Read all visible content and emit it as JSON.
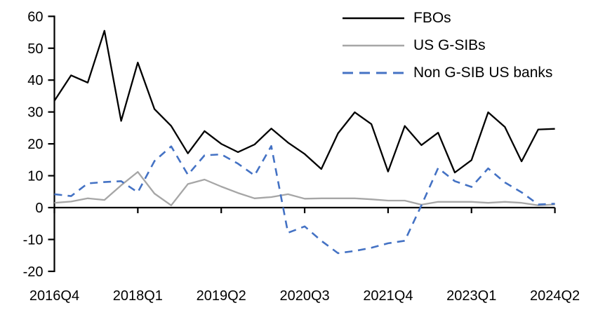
{
  "chart_data": {
    "type": "line",
    "title": "",
    "xlabel": "",
    "ylabel": "",
    "categories": [
      "2016Q4",
      "2017Q1",
      "2017Q2",
      "2017Q3",
      "2017Q4",
      "2018Q1",
      "2018Q2",
      "2018Q3",
      "2018Q4",
      "2019Q1",
      "2019Q2",
      "2019Q3",
      "2019Q4",
      "2020Q1",
      "2020Q2",
      "2020Q3",
      "2020Q4",
      "2021Q1",
      "2021Q2",
      "2021Q3",
      "2021Q4",
      "2022Q1",
      "2022Q2",
      "2022Q3",
      "2022Q4",
      "2023Q1",
      "2023Q2",
      "2023Q3",
      "2023Q4",
      "2024Q1",
      "2024Q2"
    ],
    "x_tick_labels": [
      "2016Q4",
      "2018Q1",
      "2019Q2",
      "2020Q3",
      "2021Q4",
      "2023Q1",
      "2024Q2"
    ],
    "x_tick_indices": [
      0,
      5,
      10,
      15,
      20,
      25,
      30
    ],
    "y_ticks": [
      60,
      50,
      40,
      30,
      20,
      10,
      0,
      -10,
      -20
    ],
    "ylim": [
      -20,
      60
    ],
    "grid": false,
    "legend_position": "top-right",
    "series": [
      {
        "name": "FBOs",
        "color": "#000000",
        "dash": false,
        "values": [
          33.5,
          41.5,
          39.2,
          55.5,
          27.2,
          45.5,
          30.9,
          25.6,
          17.0,
          24.0,
          20.0,
          17.4,
          19.8,
          24.8,
          20.4,
          16.8,
          12.1,
          23.3,
          29.9,
          26.2,
          11.3,
          25.6,
          19.6,
          23.5,
          11.0,
          14.9,
          29.9,
          25.3,
          14.5,
          24.5,
          24.7
        ]
      },
      {
        "name": "US G-SIBs",
        "color": "#a6a6a6",
        "dash": false,
        "values": [
          1.5,
          1.9,
          2.9,
          2.4,
          7.0,
          11.2,
          4.4,
          0.7,
          7.4,
          8.8,
          6.6,
          4.6,
          2.9,
          3.3,
          4.2,
          2.8,
          2.9,
          2.9,
          2.9,
          2.6,
          2.2,
          2.2,
          0.9,
          1.8,
          1.8,
          1.8,
          1.5,
          1.8,
          1.5,
          0.7,
          1.0
        ]
      },
      {
        "name": "Non G-SIB US banks",
        "color": "#4472c4",
        "dash": true,
        "values": [
          4.2,
          3.6,
          7.6,
          8.0,
          8.3,
          4.8,
          14.6,
          19.2,
          10.3,
          16.4,
          16.7,
          13.8,
          10.1,
          19.3,
          -7.9,
          -5.9,
          -10.4,
          -14.3,
          -13.6,
          -12.6,
          -11.2,
          -10.4,
          0.7,
          12.4,
          8.3,
          6.5,
          12.3,
          7.9,
          4.8,
          1.0,
          1.2
        ]
      }
    ]
  },
  "legend": {
    "items": [
      {
        "label": "FBOs"
      },
      {
        "label": "US G-SIBs"
      },
      {
        "label": "Non G-SIB US banks"
      }
    ]
  },
  "colors": {
    "axis": "#000000",
    "background": "#ffffff",
    "fbos_line": "#000000",
    "us_gsibs_line": "#a6a6a6",
    "non_gsib_line": "#4472c4"
  }
}
